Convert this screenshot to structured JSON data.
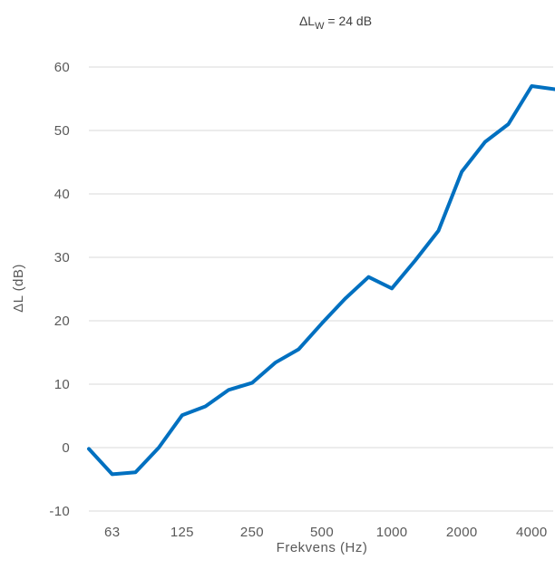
{
  "chart_data": {
    "type": "line",
    "title_prefix": "ΔL",
    "title_subscript": "W",
    "title_suffix": " = 24 dB",
    "xlabel": "Frekvens (Hz)",
    "ylabel": "ΔL (dB)",
    "ylim": [
      -10,
      60
    ],
    "yticks": [
      -10,
      0,
      10,
      20,
      30,
      40,
      50,
      60
    ],
    "grid": true,
    "x_tick_labels": [
      "63",
      "125",
      "250",
      "500",
      "1000",
      "2000",
      "4000"
    ],
    "x": [
      "50",
      "63",
      "80",
      "100",
      "125",
      "160",
      "200",
      "250",
      "315",
      "400",
      "500",
      "630",
      "800",
      "1000",
      "1250",
      "1600",
      "2000",
      "2500",
      "3150",
      "4000",
      "5000"
    ],
    "series": [
      {
        "color": "#0070c0",
        "values": [
          -0.2,
          -4.2,
          -3.9,
          0.0,
          5.1,
          6.5,
          9.1,
          10.2,
          13.4,
          15.5,
          19.6,
          23.5,
          26.9,
          25.1,
          29.5,
          34.2,
          43.5,
          48.2,
          51.0,
          57.0,
          56.5
        ]
      }
    ]
  }
}
